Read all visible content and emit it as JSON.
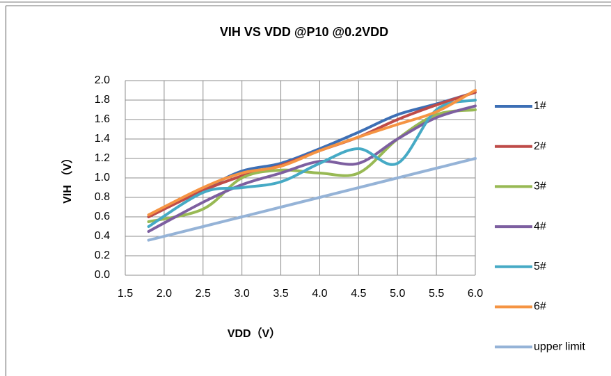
{
  "chart_data": {
    "type": "line",
    "title": "VIH VS VDD @P10 @0.2VDD",
    "xlabel": "VDD（V）",
    "ylabel": "VIH （V）",
    "x": [
      1.8,
      2.5,
      3.0,
      3.5,
      4.0,
      4.5,
      5.0,
      5.5,
      6.0
    ],
    "series": [
      {
        "name": "1#",
        "color": "#3d6fb5",
        "values": [
          0.6,
          0.88,
          1.07,
          1.15,
          1.3,
          1.47,
          1.65,
          1.76,
          1.88
        ]
      },
      {
        "name": "2#",
        "color": "#be4b48",
        "values": [
          0.6,
          0.87,
          1.02,
          1.13,
          1.28,
          1.42,
          1.6,
          1.75,
          1.88
        ]
      },
      {
        "name": "3#",
        "color": "#98b954",
        "values": [
          0.55,
          0.68,
          1.0,
          1.08,
          1.05,
          1.05,
          1.4,
          1.65,
          1.7
        ]
      },
      {
        "name": "4#",
        "color": "#7d5fa0",
        "values": [
          0.45,
          0.75,
          0.93,
          1.05,
          1.17,
          1.15,
          1.4,
          1.62,
          1.74
        ]
      },
      {
        "name": "5#",
        "color": "#46aac5",
        "values": [
          0.5,
          0.85,
          0.9,
          0.96,
          1.15,
          1.3,
          1.15,
          1.7,
          1.8
        ]
      },
      {
        "name": "6#",
        "color": "#f59443",
        "values": [
          0.62,
          0.9,
          1.05,
          1.12,
          1.28,
          1.42,
          1.55,
          1.68,
          1.9
        ]
      },
      {
        "name": "upper limit",
        "color": "#95b3d7",
        "values": [
          0.36,
          0.5,
          0.6,
          0.7,
          0.8,
          0.9,
          1.0,
          1.1,
          1.2
        ]
      }
    ],
    "xlim": [
      1.5,
      6.0
    ],
    "xticks": [
      1.5,
      {
        "value": 2,
        "label": "2.0"
      },
      2.5,
      {
        "value": 3,
        "label": "3.0"
      },
      3.5,
      {
        "value": 4,
        "label": "4.0"
      },
      4.5,
      {
        "value": 5,
        "label": "5.0"
      },
      5.5,
      {
        "value": 6,
        "label": "6.0"
      }
    ],
    "ylim": [
      0,
      2.0
    ],
    "yticks": [
      {
        "value": 0,
        "label": "0.0"
      },
      0.2,
      0.4,
      0.6,
      0.8,
      {
        "value": 1,
        "label": "1.0"
      },
      1.2,
      1.4,
      1.6,
      1.8,
      {
        "value": 2,
        "label": "2.0"
      }
    ],
    "grid": true,
    "smooth": true,
    "legend": "right"
  }
}
